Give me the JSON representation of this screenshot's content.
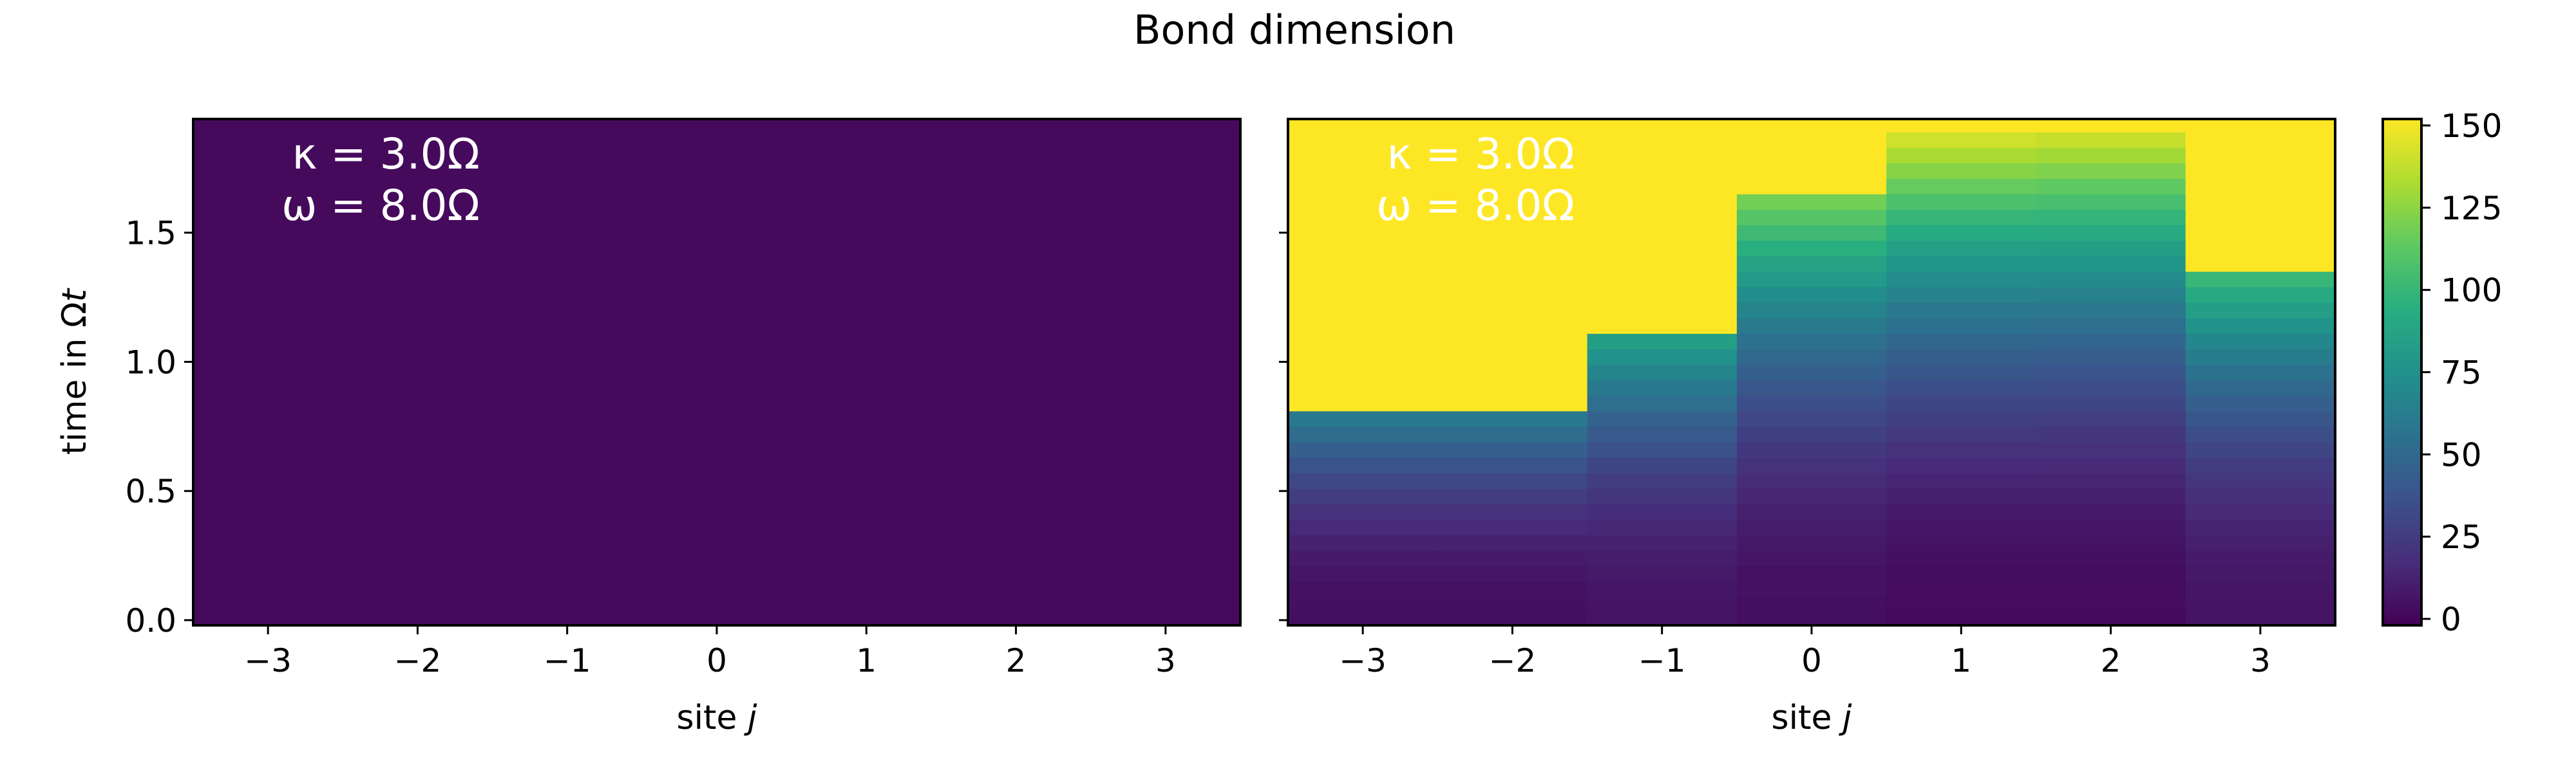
{
  "chart_data": {
    "type": "heatmap",
    "title": "Bond dimension",
    "colormap": "viridis",
    "colorbar": {
      "range": [
        0,
        150
      ],
      "ticks": [
        "0",
        "25",
        "50",
        "75",
        "100",
        "125",
        "150"
      ]
    },
    "x_ticks": [
      "−3",
      "−2",
      "−1",
      "0",
      "1",
      "2",
      "3"
    ],
    "y_ticks": [
      "0.0",
      "0.5",
      "1.0",
      "1.5"
    ],
    "xlabel": {
      "prefix": "site ",
      "var": "j"
    },
    "ylabel": {
      "prefix": "time in Ω",
      "var": "t"
    },
    "x": [
      -3,
      -2,
      -1,
      0,
      1,
      2,
      3
    ],
    "xlim": [
      -3.5,
      3.5
    ],
    "ylim": [
      -0.02,
      1.94
    ],
    "time_step": 0.06,
    "panels": [
      {
        "name": "left",
        "annotation": {
          "kappa": "κ = 3.0Ω",
          "omega": "ω = 8.0Ω"
        },
        "saturation_time": [
          null,
          null,
          null,
          null,
          null,
          null,
          null
        ],
        "initial_value": [
          4,
          4,
          4,
          4,
          4,
          4,
          4
        ],
        "growth_rate": [
          0,
          0,
          0,
          0,
          0,
          0,
          0
        ]
      },
      {
        "name": "right",
        "annotation": {
          "kappa": "κ = 3.0Ω",
          "omega": "ω = 8.0Ω"
        },
        "saturation_time": [
          0.8,
          0.8,
          1.12,
          1.68,
          1.92,
          1.88,
          1.38
        ],
        "initial_value": [
          6,
          6,
          8,
          6,
          4,
          4,
          8
        ],
        "growth_rate": [
          180,
          180,
          130,
          85,
          78,
          77,
          105
        ]
      }
    ],
    "max_value": 150
  }
}
